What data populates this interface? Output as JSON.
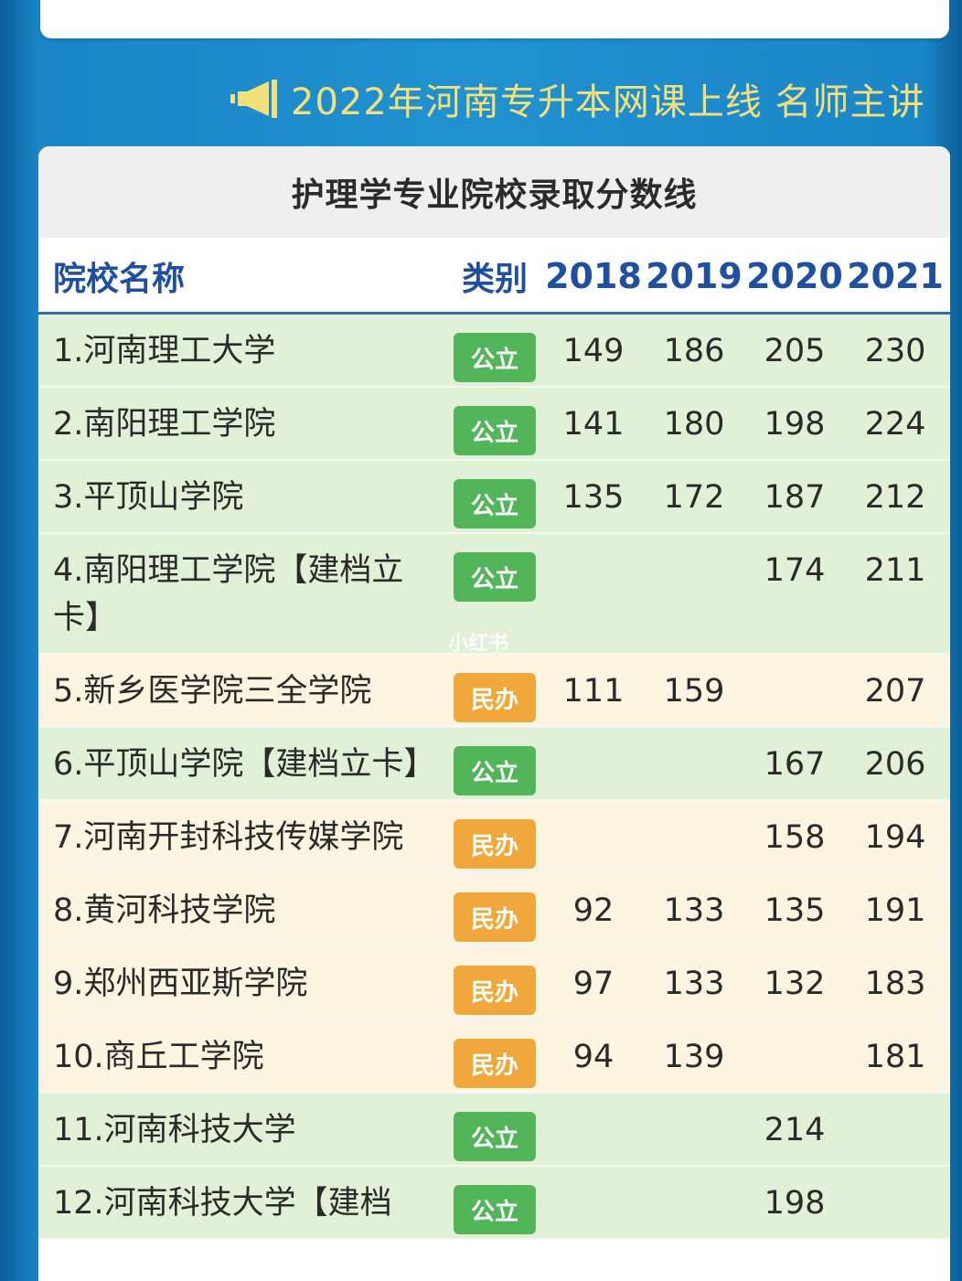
{
  "banner": {
    "icon": "megaphone-icon",
    "text": "2022年河南专升本网课上线 名师主讲"
  },
  "table": {
    "title": "护理学专业院校录取分数线",
    "headers": {
      "name": "院校名称",
      "type": "类别",
      "years": [
        "2018",
        "2019",
        "2020",
        "2021"
      ]
    },
    "rows": [
      {
        "name": "1.河南理工大学",
        "type": "公立",
        "kind": "pub",
        "scores": [
          "149",
          "186",
          "205",
          "230"
        ]
      },
      {
        "name": "2.南阳理工学院",
        "type": "公立",
        "kind": "pub",
        "scores": [
          "141",
          "180",
          "198",
          "224"
        ]
      },
      {
        "name": "3.平顶山学院",
        "type": "公立",
        "kind": "pub",
        "scores": [
          "135",
          "172",
          "187",
          "212"
        ]
      },
      {
        "name": "4.南阳理工学院【建档立卡】",
        "type": "公立",
        "kind": "pub",
        "scores": [
          "",
          "",
          "174",
          "211"
        ]
      },
      {
        "name": "5.新乡医学院三全学院",
        "type": "民办",
        "kind": "pri",
        "scores": [
          "111",
          "159",
          "",
          "207"
        ]
      },
      {
        "name": "6.平顶山学院【建档立卡】",
        "type": "公立",
        "kind": "pub",
        "scores": [
          "",
          "",
          "167",
          "206"
        ]
      },
      {
        "name": "7.河南开封科技传媒学院",
        "type": "民办",
        "kind": "pri",
        "scores": [
          "",
          "",
          "158",
          "194"
        ]
      },
      {
        "name": "8.黄河科技学院",
        "type": "民办",
        "kind": "pri",
        "scores": [
          "92",
          "133",
          "135",
          "191"
        ]
      },
      {
        "name": "9.郑州西亚斯学院",
        "type": "民办",
        "kind": "pri",
        "scores": [
          "97",
          "133",
          "132",
          "183"
        ]
      },
      {
        "name": "10.商丘工学院",
        "type": "民办",
        "kind": "pri",
        "scores": [
          "94",
          "139",
          "",
          "181"
        ]
      },
      {
        "name": "11.河南科技大学",
        "type": "公立",
        "kind": "pub",
        "scores": [
          "",
          "",
          "214",
          ""
        ]
      },
      {
        "name": "12.河南科技大学【建档",
        "type": "公立",
        "kind": "pub",
        "scores": [
          "",
          "",
          "198",
          ""
        ]
      }
    ]
  },
  "watermark": "小红书",
  "colors": {
    "public_badge": "#52b55a",
    "private_badge": "#f0a83c",
    "public_row": "#e0f1d7",
    "private_row": "#fcf5e2",
    "header_text": "#1f4f9f",
    "banner_text": "#f3e07a"
  }
}
